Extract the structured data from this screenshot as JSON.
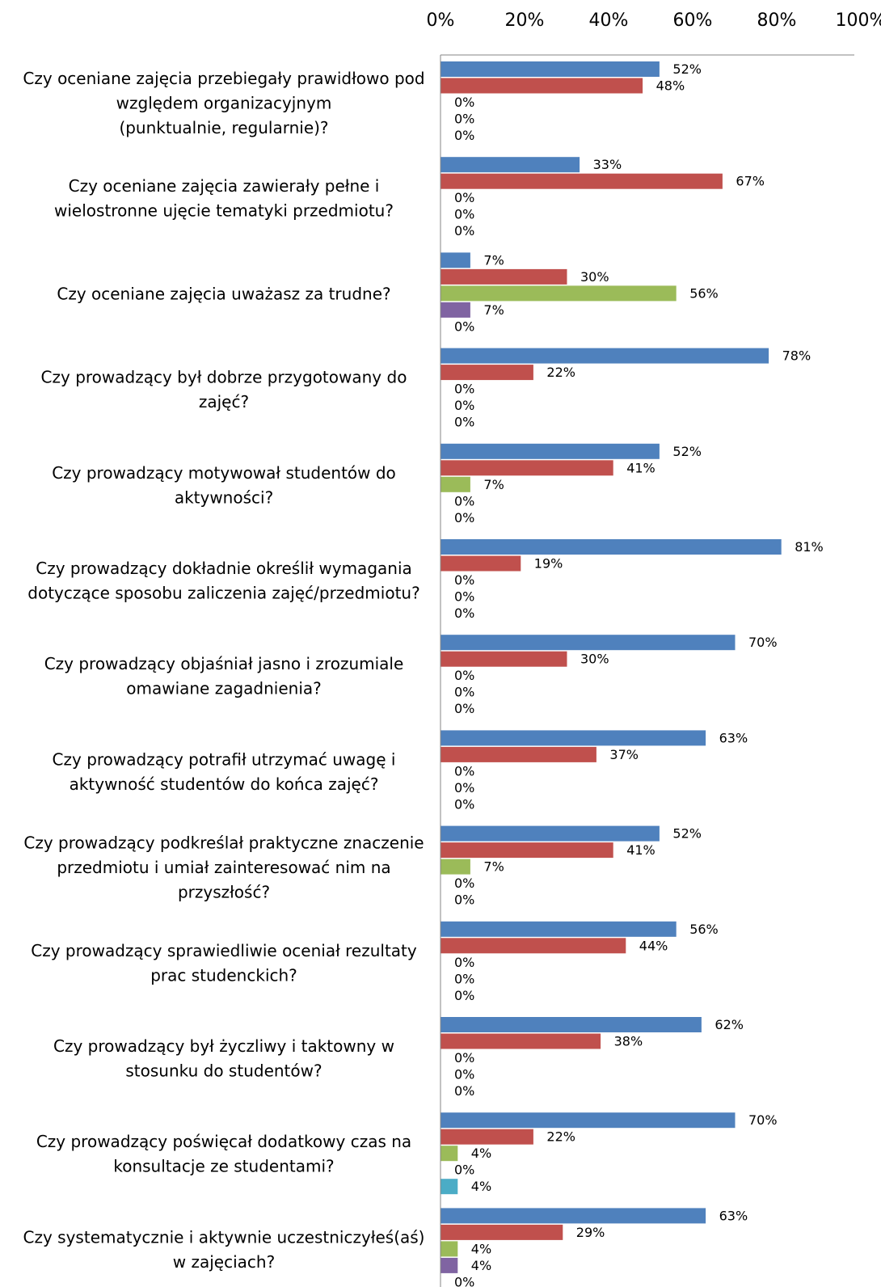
{
  "chart_data": {
    "type": "bar",
    "orientation": "horizontal",
    "xaxis_position": "top",
    "xlim": [
      0,
      100
    ],
    "x_ticks": [
      "0%",
      "20%",
      "40%",
      "60%",
      "80%",
      "100%"
    ],
    "grid": false,
    "legend": "none",
    "categories": [
      [
        "Czy oceniane zajęcia przebiegały prawidłowo pod",
        "względem organizacyjnym",
        "(punktualnie, regularnie)?"
      ],
      [
        "Czy oceniane zajęcia zawierały pełne i",
        "wielostronne ujęcie tematyki przedmiotu?"
      ],
      [
        "Czy oceniane zajęcia uważasz za trudne?"
      ],
      [
        "Czy prowadzący był dobrze przygotowany do",
        "zajęć?"
      ],
      [
        "Czy prowadzący motywował studentów do",
        "aktywności?"
      ],
      [
        "Czy prowadzący dokładnie określił wymagania",
        "dotyczące sposobu zaliczenia zajęć/przedmiotu?"
      ],
      [
        "Czy prowadzący objaśniał jasno i zrozumiale",
        "omawiane zagadnienia?"
      ],
      [
        "Czy prowadzący potrafił utrzymać uwagę i",
        "aktywność studentów do końca zajęć?"
      ],
      [
        "Czy prowadzący podkreślał praktyczne znaczenie",
        "przedmiotu i umiał zainteresować nim na",
        "przyszłość?"
      ],
      [
        "Czy prowadzący sprawiedliwie oceniał rezultaty",
        "prac studenckich?"
      ],
      [
        "Czy prowadzący był życzliwy i taktowny w",
        "stosunku do studentów?"
      ],
      [
        "Czy prowadzący poświęcał dodatkowy czas na",
        "konsultacje ze studentami?"
      ],
      [
        "Czy systematycznie i aktywnie uczestniczyłeś(aś)",
        "w zajęciach?"
      ]
    ],
    "series": [
      {
        "color": "#4F81BD",
        "values": [
          52,
          33,
          7,
          78,
          52,
          81,
          70,
          63,
          52,
          56,
          62,
          70,
          63
        ]
      },
      {
        "color": "#C0504D",
        "values": [
          48,
          67,
          30,
          22,
          41,
          19,
          30,
          37,
          41,
          44,
          38,
          22,
          29
        ]
      },
      {
        "color": "#9BBB59",
        "values": [
          0,
          0,
          56,
          0,
          7,
          0,
          0,
          0,
          7,
          0,
          0,
          4,
          4
        ]
      },
      {
        "color": "#8064A2",
        "values": [
          0,
          0,
          7,
          0,
          0,
          0,
          0,
          0,
          0,
          0,
          0,
          0,
          4
        ]
      },
      {
        "color": "#4BACC6",
        "values": [
          0,
          0,
          0,
          0,
          0,
          0,
          0,
          0,
          0,
          0,
          0,
          4,
          0
        ]
      }
    ],
    "data_label_suffix": "%"
  }
}
